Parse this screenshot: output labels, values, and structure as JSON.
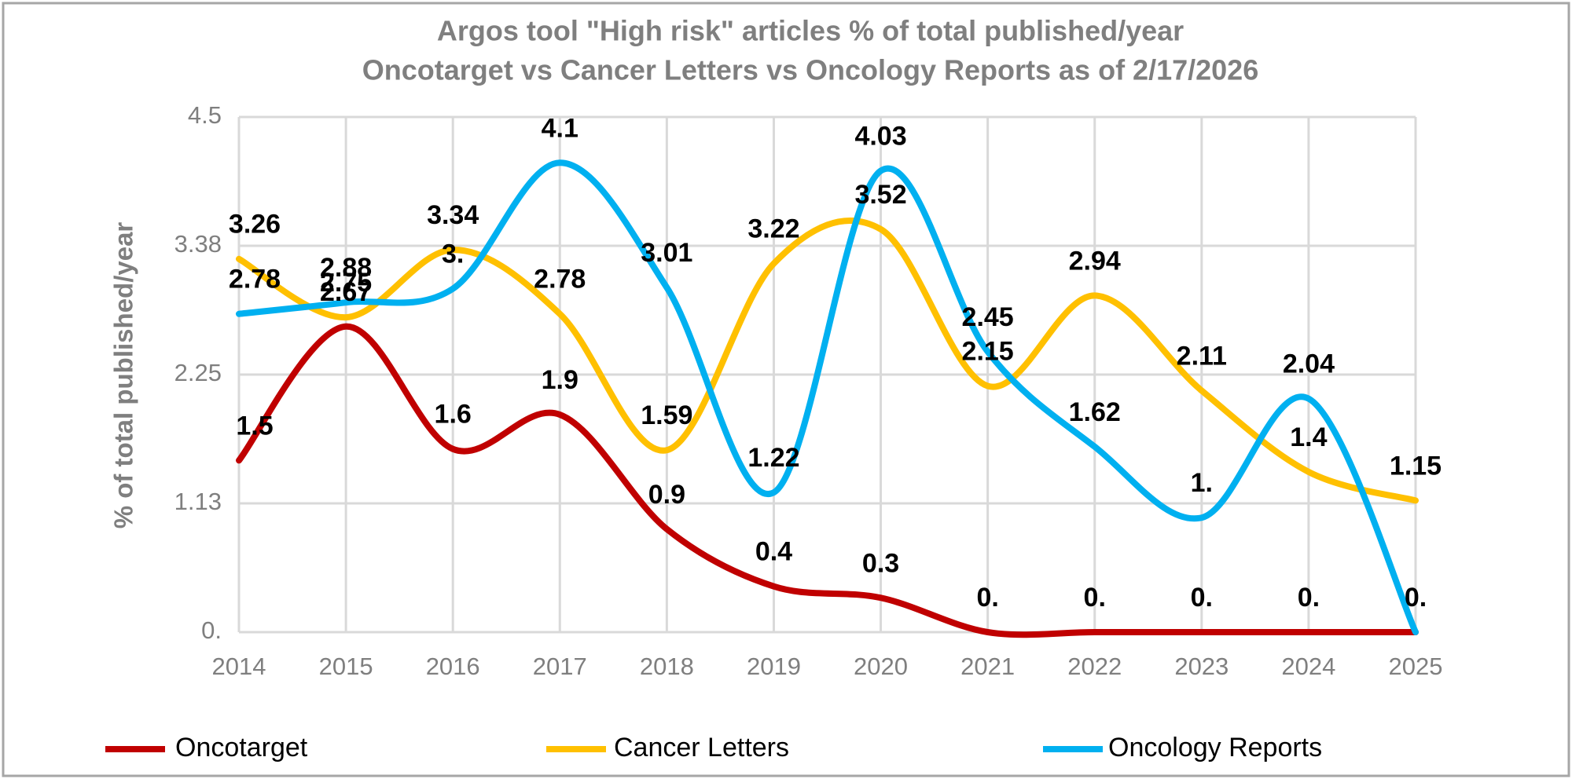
{
  "chart_data": {
    "type": "line",
    "title": "Argos tool \"High risk\" articles % of  total published/year",
    "subtitle": "Oncotarget vs Cancer Letters vs Oncology Reports as of 2/17/2026",
    "y_label": "% of  total published/year",
    "categories": [
      "2014",
      "2015",
      "2016",
      "2017",
      "2018",
      "2019",
      "2020",
      "2021",
      "2022",
      "2023",
      "2024",
      "2025"
    ],
    "series": [
      {
        "name": "Oncotarget",
        "color": "#c00000",
        "values": [
          1.5,
          2.67,
          1.6,
          1.9,
          0.9,
          0.4,
          0.3,
          0,
          0,
          0,
          0,
          0
        ],
        "value_labels": [
          "1.5",
          "2.67",
          "1.6",
          "1.9",
          "0.9",
          "0.4",
          "0.3",
          "0.",
          "0.",
          "0.",
          "0.",
          "0."
        ]
      },
      {
        "name": "Cancer Letters",
        "color": "#ffc000",
        "values": [
          3.26,
          2.75,
          3.34,
          2.78,
          1.59,
          3.22,
          3.52,
          2.15,
          2.94,
          2.11,
          1.4,
          1.15
        ],
        "value_labels": [
          "3.26",
          "2.75",
          "3.34",
          "2.78",
          "1.59",
          "3.22",
          "3.52",
          "2.15",
          "2.94",
          "2.11",
          "1.4",
          "1.15"
        ]
      },
      {
        "name": "Oncology Reports",
        "color": "#00b0f0",
        "values": [
          2.78,
          2.88,
          3,
          4.1,
          3.01,
          1.22,
          4.03,
          2.45,
          1.62,
          1,
          2.04,
          0
        ],
        "value_labels": [
          "2.78",
          "2.88",
          "3.",
          "4.1",
          "3.01",
          "1.22",
          "4.03",
          "2.45",
          "1.62",
          "1.",
          "2.04",
          null
        ]
      }
    ],
    "ylim": [
      0,
      4.5
    ],
    "yticks": [
      {
        "value": 0,
        "label": "0."
      },
      {
        "value": 1.125,
        "label": "1.13"
      },
      2.25,
      {
        "value": 3.375,
        "label": "3.38"
      },
      4.5
    ],
    "grid": true,
    "smooth": true,
    "legend": "bottom"
  }
}
